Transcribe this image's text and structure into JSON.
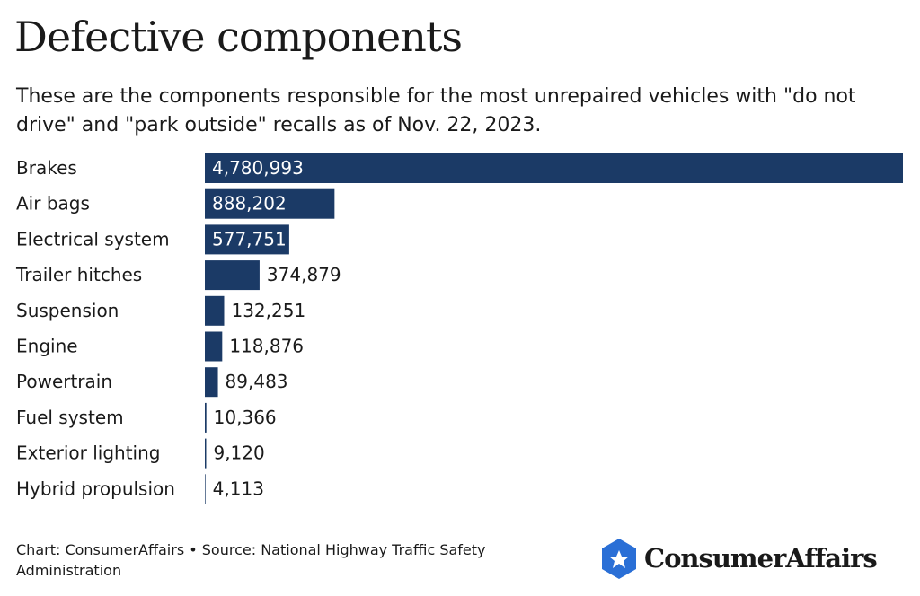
{
  "chart_data": {
    "type": "bar",
    "orientation": "horizontal",
    "title": "Defective components",
    "subtitle": "These are the components responsible for the most unrepaired vehicles with \"do not drive\" and \"park outside\" recalls as of Nov. 22, 2023.",
    "categories": [
      "Brakes",
      "Air bags",
      "Electrical system",
      "Trailer hitches",
      "Suspension",
      "Engine",
      "Powertrain",
      "Fuel system",
      "Exterior lighting",
      "Hybrid propulsion"
    ],
    "values": [
      4780993,
      888202,
      577751,
      374879,
      132251,
      118876,
      89483,
      10366,
      9120,
      4113
    ],
    "value_labels": [
      "4,780,993",
      "888,202",
      "577,751",
      "374,879",
      "132,251",
      "118,876",
      "89,483",
      "10,366",
      "9,120",
      "4,113"
    ],
    "color": "#1b3a66",
    "footer": "Chart: ConsumerAffairs • Source: National Highway Traffic Safety Administration",
    "logo": "ConsumerAffairs"
  }
}
